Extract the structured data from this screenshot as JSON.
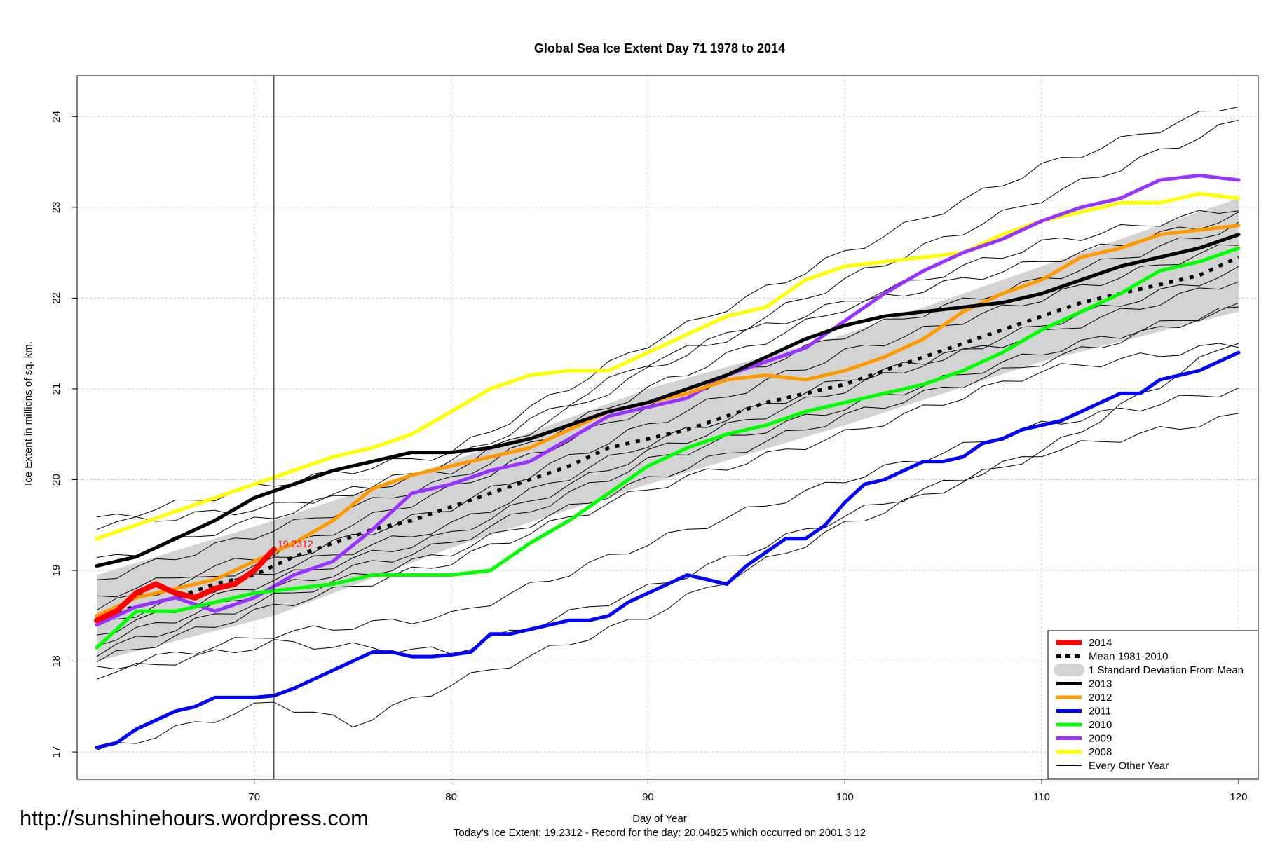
{
  "source_url": "http://sunshinehours.wordpress.com",
  "footer_text": "Today's Ice Extent: 19.2312  - Record for the day: 20.04825 which occurred on 2001 3 12",
  "today_value_label": "19.2312",
  "chart_data": {
    "type": "line",
    "title": "Global Sea Ice Extent Day 71 1978 to 2014",
    "xlabel": "Day of Year",
    "ylabel": "Ice Extent in millions of sq. km.",
    "xlim": [
      61,
      121
    ],
    "ylim": [
      16.7,
      24.45
    ],
    "x_ticks": [
      70,
      80,
      90,
      100,
      110,
      120
    ],
    "y_ticks": [
      17,
      18,
      19,
      20,
      21,
      22,
      23,
      24
    ],
    "grid": true,
    "legend_position": "bottom-right",
    "marker_day": 71,
    "sd_band": {
      "name": "1 Standard Deviation From Mean",
      "color": "#d3d3d3",
      "x": [
        62,
        71,
        80,
        90,
        100,
        110,
        120
      ],
      "lower": [
        18.0,
        18.5,
        19.25,
        19.95,
        20.6,
        21.3,
        21.85
      ],
      "upper": [
        18.95,
        19.55,
        20.2,
        21.0,
        21.6,
        22.35,
        23.1
      ]
    },
    "mean_series": {
      "name": "Mean 1981-2010",
      "color": "#000000",
      "x": [
        62,
        64,
        66,
        68,
        70,
        72,
        74,
        76,
        78,
        80,
        82,
        84,
        86,
        88,
        90,
        92,
        94,
        96,
        98,
        100,
        102,
        104,
        106,
        108,
        110,
        112,
        114,
        116,
        118,
        120
      ],
      "y": [
        18.5,
        18.6,
        18.7,
        18.85,
        18.95,
        19.15,
        19.3,
        19.45,
        19.55,
        19.7,
        19.85,
        20.0,
        20.15,
        20.35,
        20.45,
        20.55,
        20.7,
        20.85,
        20.95,
        21.05,
        21.2,
        21.35,
        21.5,
        21.65,
        21.8,
        21.95,
        22.05,
        22.15,
        22.25,
        22.45
      ]
    },
    "series": [
      {
        "name": "2014",
        "color": "#ff0000",
        "width": 8,
        "x": [
          62,
          63,
          64,
          65,
          66,
          67,
          68,
          69,
          70,
          71
        ],
        "y": [
          18.45,
          18.55,
          18.75,
          18.85,
          18.75,
          18.7,
          18.8,
          18.85,
          19.0,
          19.2312
        ]
      },
      {
        "name": "2013",
        "color": "#000000",
        "width": 5,
        "x": [
          62,
          64,
          66,
          68,
          70,
          72,
          74,
          76,
          78,
          80,
          82,
          84,
          86,
          88,
          90,
          92,
          94,
          96,
          98,
          100,
          102,
          104,
          106,
          108,
          110,
          112,
          114,
          116,
          118,
          120
        ],
        "y": [
          19.05,
          19.15,
          19.35,
          19.55,
          19.8,
          19.95,
          20.1,
          20.2,
          20.3,
          20.3,
          20.35,
          20.45,
          20.6,
          20.75,
          20.85,
          21.0,
          21.15,
          21.35,
          21.55,
          21.7,
          21.8,
          21.85,
          21.9,
          21.95,
          22.05,
          22.2,
          22.35,
          22.45,
          22.55,
          22.7
        ]
      },
      {
        "name": "2012",
        "color": "#ff9900",
        "width": 5,
        "x": [
          62,
          64,
          66,
          68,
          70,
          72,
          74,
          76,
          78,
          80,
          82,
          84,
          86,
          88,
          90,
          92,
          94,
          96,
          98,
          100,
          102,
          104,
          106,
          108,
          110,
          112,
          114,
          116,
          118,
          120
        ],
        "y": [
          18.5,
          18.7,
          18.8,
          18.9,
          19.1,
          19.3,
          19.55,
          19.9,
          20.05,
          20.15,
          20.25,
          20.35,
          20.55,
          20.75,
          20.85,
          20.95,
          21.1,
          21.15,
          21.1,
          21.2,
          21.35,
          21.55,
          21.85,
          22.05,
          22.2,
          22.45,
          22.55,
          22.7,
          22.75,
          22.8
        ]
      },
      {
        "name": "2011",
        "color": "#0000ff",
        "width": 5,
        "x": [
          62,
          63,
          64,
          65,
          66,
          67,
          68,
          69,
          70,
          71,
          72,
          73,
          74,
          75,
          76,
          77,
          78,
          79,
          80,
          81,
          82,
          83,
          84,
          85,
          86,
          87,
          88,
          89,
          90,
          91,
          92,
          93,
          94,
          95,
          96,
          97,
          98,
          99,
          100,
          101,
          102,
          103,
          104,
          105,
          106,
          107,
          108,
          109,
          110,
          111,
          112,
          113,
          114,
          115,
          116,
          117,
          118,
          119,
          120
        ],
        "y": [
          17.05,
          17.1,
          17.25,
          17.35,
          17.45,
          17.5,
          17.6,
          17.6,
          17.6,
          17.62,
          17.7,
          17.8,
          17.9,
          18.0,
          18.1,
          18.1,
          18.05,
          18.05,
          18.07,
          18.1,
          18.3,
          18.3,
          18.35,
          18.4,
          18.45,
          18.45,
          18.5,
          18.65,
          18.75,
          18.85,
          18.95,
          18.9,
          18.85,
          19.05,
          19.2,
          19.35,
          19.35,
          19.5,
          19.75,
          19.95,
          20.0,
          20.1,
          20.2,
          20.2,
          20.25,
          20.4,
          20.45,
          20.55,
          20.6,
          20.65,
          20.75,
          20.85,
          20.95,
          20.95,
          21.1,
          21.15,
          21.2,
          21.3,
          21.4
        ]
      },
      {
        "name": "2010",
        "color": "#00ff00",
        "width": 5,
        "x": [
          62,
          64,
          66,
          68,
          70,
          72,
          74,
          76,
          78,
          80,
          82,
          84,
          86,
          88,
          90,
          92,
          94,
          96,
          98,
          100,
          102,
          104,
          106,
          108,
          110,
          112,
          114,
          116,
          118,
          120
        ],
        "y": [
          18.15,
          18.55,
          18.55,
          18.65,
          18.75,
          18.8,
          18.85,
          18.95,
          18.95,
          18.95,
          19.0,
          19.3,
          19.55,
          19.85,
          20.15,
          20.35,
          20.5,
          20.6,
          20.75,
          20.85,
          20.95,
          21.05,
          21.2,
          21.4,
          21.65,
          21.85,
          22.05,
          22.3,
          22.4,
          22.55
        ]
      },
      {
        "name": "2009",
        "color": "#9933ff",
        "width": 5,
        "x": [
          62,
          64,
          66,
          68,
          70,
          72,
          74,
          76,
          78,
          80,
          82,
          84,
          86,
          88,
          90,
          92,
          94,
          96,
          98,
          100,
          102,
          104,
          106,
          108,
          110,
          112,
          114,
          116,
          118,
          120
        ],
        "y": [
          18.4,
          18.6,
          18.7,
          18.55,
          18.7,
          18.95,
          19.1,
          19.45,
          19.85,
          19.95,
          20.1,
          20.2,
          20.45,
          20.7,
          20.8,
          20.9,
          21.15,
          21.3,
          21.45,
          21.75,
          22.05,
          22.3,
          22.5,
          22.65,
          22.85,
          23.0,
          23.1,
          23.3,
          23.35,
          23.3
        ]
      },
      {
        "name": "2008",
        "color": "#ffff00",
        "width": 5,
        "x": [
          62,
          64,
          66,
          68,
          70,
          72,
          74,
          76,
          78,
          80,
          82,
          84,
          86,
          88,
          90,
          92,
          94,
          96,
          98,
          100,
          102,
          104,
          106,
          108,
          110,
          112,
          114,
          116,
          118,
          120
        ],
        "y": [
          19.35,
          19.5,
          19.65,
          19.8,
          19.95,
          20.1,
          20.25,
          20.35,
          20.5,
          20.75,
          21.0,
          21.15,
          21.2,
          21.2,
          21.4,
          21.6,
          21.8,
          21.9,
          22.2,
          22.35,
          22.4,
          22.45,
          22.5,
          22.7,
          22.85,
          22.95,
          23.05,
          23.05,
          23.15,
          23.1
        ]
      }
    ],
    "background_years": [
      {
        "x": [
          62,
          71,
          80,
          90,
          100,
          110,
          120
        ],
        "y": [
          19.5,
          19.7,
          20.1,
          21.2,
          22.2,
          23.1,
          23.95
        ]
      },
      {
        "x": [
          62,
          71,
          80,
          90,
          100,
          110,
          120
        ],
        "y": [
          19.55,
          19.95,
          20.3,
          21.5,
          22.5,
          23.45,
          24.15
        ]
      },
      {
        "x": [
          62,
          71,
          80,
          90,
          100,
          110,
          120
        ],
        "y": [
          18.9,
          19.45,
          20.0,
          21.0,
          21.9,
          22.4,
          22.9
        ]
      },
      {
        "x": [
          62,
          71,
          80,
          90,
          100,
          110,
          120
        ],
        "y": [
          18.6,
          19.1,
          19.7,
          20.6,
          21.4,
          22.0,
          22.6
        ]
      },
      {
        "x": [
          62,
          71,
          80,
          90,
          100,
          110,
          120
        ],
        "y": [
          18.4,
          19.0,
          19.5,
          20.4,
          21.1,
          21.6,
          22.2
        ]
      },
      {
        "x": [
          62,
          71,
          80,
          90,
          100,
          110,
          120
        ],
        "y": [
          18.2,
          18.8,
          19.3,
          20.2,
          20.8,
          21.4,
          21.9
        ]
      },
      {
        "x": [
          62,
          71,
          80,
          90,
          100,
          110,
          120
        ],
        "y": [
          18.0,
          18.6,
          19.1,
          19.9,
          20.5,
          21.2,
          21.5
        ]
      },
      {
        "x": [
          62,
          71,
          80,
          90,
          100,
          110,
          120
        ],
        "y": [
          17.9,
          18.3,
          18.5,
          19.3,
          20.0,
          20.6,
          21.0
        ]
      },
      {
        "x": [
          62,
          71,
          80,
          90,
          100,
          110,
          120
        ],
        "y": [
          17.85,
          18.2,
          18.1,
          18.8,
          19.6,
          20.3,
          20.7
        ]
      },
      {
        "x": [
          62,
          66,
          71,
          75,
          80,
          90,
          100,
          110,
          120
        ],
        "y": [
          17.0,
          17.25,
          17.55,
          17.3,
          17.75,
          18.5,
          19.5,
          20.3,
          21.55
        ]
      },
      {
        "x": [
          62,
          71,
          80,
          90,
          100,
          110,
          120
        ],
        "y": [
          18.7,
          19.2,
          19.9,
          20.8,
          21.6,
          22.2,
          22.8
        ]
      },
      {
        "x": [
          62,
          71,
          80,
          90,
          100,
          110,
          120
        ],
        "y": [
          18.1,
          18.7,
          19.2,
          20.0,
          20.7,
          21.3,
          21.9
        ]
      },
      {
        "x": [
          62,
          71,
          80,
          90,
          100,
          110,
          120
        ],
        "y": [
          19.1,
          19.6,
          20.2,
          21.3,
          21.95,
          22.6,
          23.0
        ]
      },
      {
        "x": [
          62,
          71,
          80,
          90,
          100,
          110,
          120
        ],
        "y": [
          18.3,
          18.9,
          19.4,
          20.3,
          21.0,
          21.7,
          22.3
        ]
      }
    ]
  }
}
